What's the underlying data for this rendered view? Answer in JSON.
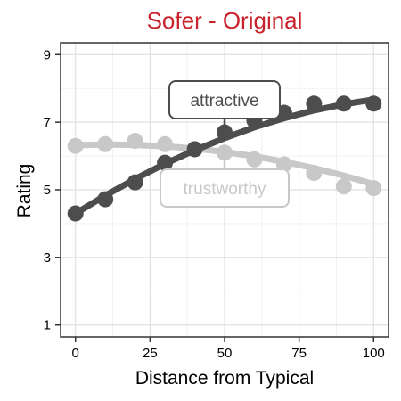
{
  "chart_data": {
    "type": "line",
    "title": "Sofer - Original",
    "xlabel": "Distance from Typical",
    "ylabel": "Rating",
    "xlim": [
      -5,
      105
    ],
    "ylim": [
      0.65,
      9.35
    ],
    "x_ticks": [
      0,
      25,
      50,
      75,
      100
    ],
    "y_ticks": [
      1,
      3,
      5,
      7,
      9
    ],
    "grid": true,
    "legend": "none",
    "colors": {
      "title": "#c8232c",
      "panel_border": "#333333",
      "grid_major": "#e0e0e0",
      "grid_minor": "#f2f2f2",
      "attractive": "#4d4d4d",
      "trustworthy": "#c8c8c8"
    },
    "series": [
      {
        "name": "attractive",
        "color": "#4d4d4d",
        "x": [
          0,
          10,
          20,
          30,
          40,
          50,
          60,
          70,
          80,
          90,
          100
        ],
        "y": [
          4.3,
          4.72,
          5.22,
          5.8,
          6.2,
          6.7,
          7.05,
          7.28,
          7.55,
          7.55,
          7.55
        ],
        "fit": [
          4.3,
          4.83,
          5.32,
          5.77,
          6.17,
          6.53,
          6.85,
          7.12,
          7.35,
          7.53,
          7.67
        ]
      },
      {
        "name": "trustworthy",
        "color": "#c8c8c8",
        "x": [
          0,
          10,
          20,
          30,
          40,
          50,
          60,
          70,
          80,
          90,
          100
        ],
        "y": [
          6.3,
          6.35,
          6.45,
          6.35,
          6.2,
          6.1,
          5.9,
          5.75,
          5.5,
          5.1,
          5.05
        ],
        "fit": [
          6.32,
          6.34,
          6.33,
          6.29,
          6.22,
          6.12,
          5.99,
          5.83,
          5.64,
          5.42,
          5.17
        ]
      }
    ],
    "annotations": [
      {
        "text": "attractive",
        "series": "attractive",
        "x": 50
      },
      {
        "text": "trustworthy",
        "series": "trustworthy",
        "x": 50
      }
    ]
  }
}
